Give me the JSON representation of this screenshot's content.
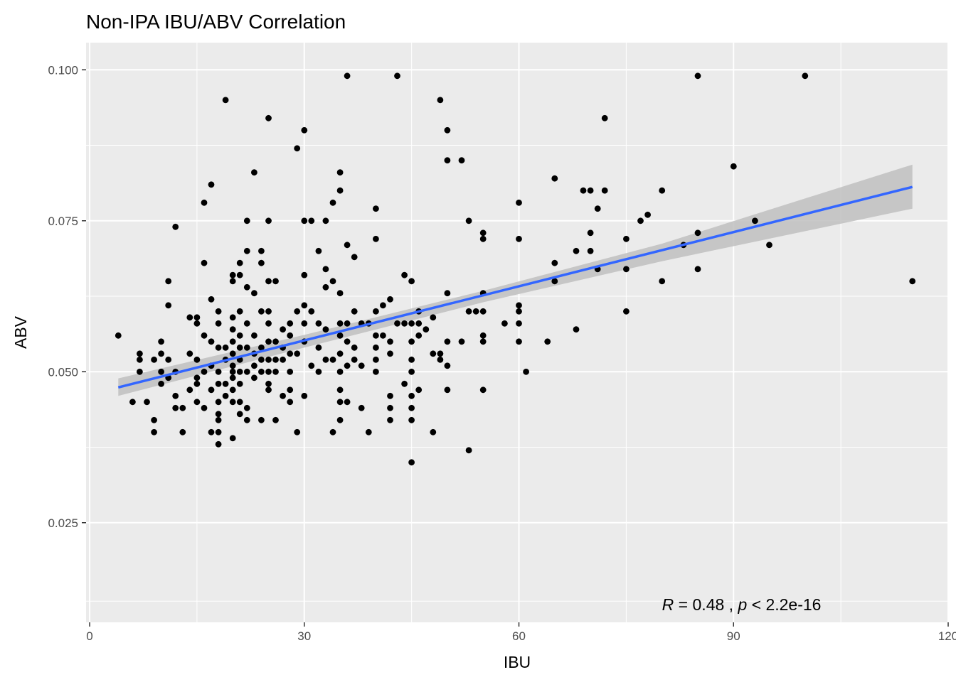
{
  "chart_data": {
    "type": "scatter",
    "title": "Non-IPA IBU/ABV Correlation",
    "xlabel": "IBU",
    "ylabel": "ABV",
    "xlim": [
      -0.5,
      120
    ],
    "ylim": [
      0.0085,
      0.1045
    ],
    "x_ticks": [
      0,
      30,
      60,
      90,
      120
    ],
    "x_tick_labels": [
      "0",
      "30",
      "60",
      "90",
      "120"
    ],
    "y_ticks": [
      0.025,
      0.05,
      0.075,
      0.1
    ],
    "y_tick_labels": [
      "0.025",
      "0.050",
      "0.075",
      "0.100"
    ],
    "grid": true,
    "colors": {
      "panel": "#ebebeb",
      "grid": "#ffffff",
      "points": "#000000",
      "trend_line": "#3366ff",
      "confidence_band": "#bfbfbf"
    },
    "annotation": {
      "r_symbol": "R",
      "r_text": " = 0.48 , ",
      "p_symbol": "p",
      "p_text": " < 2.2e-16",
      "x": 80,
      "y": 0.0105
    },
    "trend_line": {
      "x": [
        4,
        115
      ],
      "y": [
        0.0474,
        0.0806
      ]
    },
    "confidence_band": {
      "x": [
        4,
        30,
        55,
        80,
        115
      ],
      "lower": [
        0.046,
        0.054,
        0.0615,
        0.0683,
        0.077
      ],
      "upper": [
        0.0489,
        0.0561,
        0.0634,
        0.0712,
        0.0843
      ]
    },
    "series": [
      {
        "points": [
          [
            4,
            0.056
          ],
          [
            6,
            0.045
          ],
          [
            7,
            0.053
          ],
          [
            7,
            0.052
          ],
          [
            7,
            0.05
          ],
          [
            8,
            0.045
          ],
          [
            9,
            0.052
          ],
          [
            9,
            0.042
          ],
          [
            9,
            0.04
          ],
          [
            10,
            0.055
          ],
          [
            10,
            0.053
          ],
          [
            10,
            0.05
          ],
          [
            10,
            0.048
          ],
          [
            11,
            0.052
          ],
          [
            11,
            0.049
          ],
          [
            11,
            0.065
          ],
          [
            11,
            0.061
          ],
          [
            12,
            0.074
          ],
          [
            12,
            0.05
          ],
          [
            12,
            0.046
          ],
          [
            12,
            0.044
          ],
          [
            13,
            0.044
          ],
          [
            13,
            0.04
          ],
          [
            14,
            0.059
          ],
          [
            14,
            0.053
          ],
          [
            14,
            0.047
          ],
          [
            15,
            0.059
          ],
          [
            15,
            0.058
          ],
          [
            15,
            0.052
          ],
          [
            15,
            0.049
          ],
          [
            15,
            0.048
          ],
          [
            15,
            0.045
          ],
          [
            16,
            0.078
          ],
          [
            16,
            0.068
          ],
          [
            16,
            0.056
          ],
          [
            16,
            0.05
          ],
          [
            16,
            0.044
          ],
          [
            17,
            0.081
          ],
          [
            17,
            0.062
          ],
          [
            17,
            0.055
          ],
          [
            17,
            0.051
          ],
          [
            17,
            0.047
          ],
          [
            17,
            0.04
          ],
          [
            18,
            0.06
          ],
          [
            18,
            0.058
          ],
          [
            18,
            0.054
          ],
          [
            18,
            0.05
          ],
          [
            18,
            0.048
          ],
          [
            18,
            0.045
          ],
          [
            18,
            0.043
          ],
          [
            18,
            0.042
          ],
          [
            18,
            0.04
          ],
          [
            18,
            0.038
          ],
          [
            19,
            0.095
          ],
          [
            19,
            0.054
          ],
          [
            19,
            0.052
          ],
          [
            19,
            0.048
          ],
          [
            19,
            0.046
          ],
          [
            20,
            0.066
          ],
          [
            20,
            0.065
          ],
          [
            20,
            0.059
          ],
          [
            20,
            0.057
          ],
          [
            20,
            0.055
          ],
          [
            20,
            0.053
          ],
          [
            20,
            0.051
          ],
          [
            20,
            0.05
          ],
          [
            20,
            0.049
          ],
          [
            20,
            0.047
          ],
          [
            20,
            0.045
          ],
          [
            20,
            0.039
          ],
          [
            21,
            0.068
          ],
          [
            21,
            0.066
          ],
          [
            21,
            0.06
          ],
          [
            21,
            0.056
          ],
          [
            21,
            0.054
          ],
          [
            21,
            0.052
          ],
          [
            21,
            0.05
          ],
          [
            21,
            0.048
          ],
          [
            21,
            0.045
          ],
          [
            21,
            0.043
          ],
          [
            22,
            0.075
          ],
          [
            22,
            0.07
          ],
          [
            22,
            0.064
          ],
          [
            22,
            0.058
          ],
          [
            22,
            0.054
          ],
          [
            22,
            0.05
          ],
          [
            22,
            0.044
          ],
          [
            22,
            0.042
          ],
          [
            23,
            0.083
          ],
          [
            23,
            0.063
          ],
          [
            23,
            0.056
          ],
          [
            23,
            0.053
          ],
          [
            23,
            0.051
          ],
          [
            23,
            0.049
          ],
          [
            24,
            0.07
          ],
          [
            24,
            0.068
          ],
          [
            24,
            0.06
          ],
          [
            24,
            0.054
          ],
          [
            24,
            0.052
          ],
          [
            24,
            0.05
          ],
          [
            24,
            0.042
          ],
          [
            25,
            0.092
          ],
          [
            25,
            0.075
          ],
          [
            25,
            0.065
          ],
          [
            25,
            0.06
          ],
          [
            25,
            0.058
          ],
          [
            25,
            0.055
          ],
          [
            25,
            0.052
          ],
          [
            25,
            0.05
          ],
          [
            25,
            0.048
          ],
          [
            25,
            0.047
          ],
          [
            26,
            0.065
          ],
          [
            26,
            0.055
          ],
          [
            26,
            0.052
          ],
          [
            26,
            0.05
          ],
          [
            26,
            0.042
          ],
          [
            27,
            0.057
          ],
          [
            27,
            0.054
          ],
          [
            27,
            0.052
          ],
          [
            27,
            0.046
          ],
          [
            28,
            0.058
          ],
          [
            28,
            0.056
          ],
          [
            28,
            0.053
          ],
          [
            28,
            0.05
          ],
          [
            28,
            0.047
          ],
          [
            28,
            0.045
          ],
          [
            29,
            0.087
          ],
          [
            29,
            0.06
          ],
          [
            29,
            0.053
          ],
          [
            29,
            0.04
          ],
          [
            30,
            0.09
          ],
          [
            30,
            0.075
          ],
          [
            30,
            0.066
          ],
          [
            30,
            0.061
          ],
          [
            30,
            0.058
          ],
          [
            30,
            0.055
          ],
          [
            30,
            0.046
          ],
          [
            31,
            0.075
          ],
          [
            31,
            0.06
          ],
          [
            31,
            0.051
          ],
          [
            32,
            0.07
          ],
          [
            32,
            0.058
          ],
          [
            32,
            0.054
          ],
          [
            32,
            0.05
          ],
          [
            33,
            0.075
          ],
          [
            33,
            0.067
          ],
          [
            33,
            0.064
          ],
          [
            33,
            0.057
          ],
          [
            33,
            0.052
          ],
          [
            34,
            0.078
          ],
          [
            34,
            0.065
          ],
          [
            34,
            0.052
          ],
          [
            34,
            0.04
          ],
          [
            35,
            0.083
          ],
          [
            35,
            0.08
          ],
          [
            35,
            0.063
          ],
          [
            35,
            0.058
          ],
          [
            35,
            0.056
          ],
          [
            35,
            0.053
          ],
          [
            35,
            0.05
          ],
          [
            35,
            0.047
          ],
          [
            35,
            0.045
          ],
          [
            35,
            0.042
          ],
          [
            36,
            0.099
          ],
          [
            36,
            0.071
          ],
          [
            36,
            0.058
          ],
          [
            36,
            0.055
          ],
          [
            36,
            0.051
          ],
          [
            36,
            0.045
          ],
          [
            37,
            0.069
          ],
          [
            37,
            0.06
          ],
          [
            37,
            0.054
          ],
          [
            37,
            0.052
          ],
          [
            38,
            0.058
          ],
          [
            38,
            0.051
          ],
          [
            38,
            0.044
          ],
          [
            39,
            0.058
          ],
          [
            39,
            0.04
          ],
          [
            40,
            0.077
          ],
          [
            40,
            0.072
          ],
          [
            40,
            0.06
          ],
          [
            40,
            0.056
          ],
          [
            40,
            0.054
          ],
          [
            40,
            0.052
          ],
          [
            40,
            0.05
          ],
          [
            41,
            0.061
          ],
          [
            41,
            0.056
          ],
          [
            42,
            0.062
          ],
          [
            42,
            0.055
          ],
          [
            42,
            0.053
          ],
          [
            42,
            0.046
          ],
          [
            42,
            0.044
          ],
          [
            42,
            0.042
          ],
          [
            43,
            0.099
          ],
          [
            43,
            0.058
          ],
          [
            44,
            0.066
          ],
          [
            44,
            0.058
          ],
          [
            44,
            0.048
          ],
          [
            45,
            0.065
          ],
          [
            45,
            0.058
          ],
          [
            45,
            0.055
          ],
          [
            45,
            0.052
          ],
          [
            45,
            0.05
          ],
          [
            45,
            0.046
          ],
          [
            45,
            0.044
          ],
          [
            45,
            0.042
          ],
          [
            45,
            0.035
          ],
          [
            46,
            0.06
          ],
          [
            46,
            0.058
          ],
          [
            46,
            0.056
          ],
          [
            46,
            0.047
          ],
          [
            47,
            0.057
          ],
          [
            48,
            0.059
          ],
          [
            48,
            0.053
          ],
          [
            48,
            0.04
          ],
          [
            49,
            0.095
          ],
          [
            49,
            0.053
          ],
          [
            49,
            0.052
          ],
          [
            50,
            0.09
          ],
          [
            50,
            0.085
          ],
          [
            50,
            0.063
          ],
          [
            50,
            0.055
          ],
          [
            50,
            0.051
          ],
          [
            50,
            0.047
          ],
          [
            52,
            0.085
          ],
          [
            52,
            0.055
          ],
          [
            53,
            0.075
          ],
          [
            53,
            0.06
          ],
          [
            53,
            0.037
          ],
          [
            54,
            0.06
          ],
          [
            55,
            0.073
          ],
          [
            55,
            0.072
          ],
          [
            55,
            0.063
          ],
          [
            55,
            0.06
          ],
          [
            55,
            0.056
          ],
          [
            55,
            0.055
          ],
          [
            55,
            0.047
          ],
          [
            58,
            0.058
          ],
          [
            60,
            0.078
          ],
          [
            60,
            0.072
          ],
          [
            60,
            0.061
          ],
          [
            60,
            0.06
          ],
          [
            60,
            0.058
          ],
          [
            60,
            0.055
          ],
          [
            61,
            0.05
          ],
          [
            64,
            0.055
          ],
          [
            65,
            0.082
          ],
          [
            65,
            0.068
          ],
          [
            65,
            0.065
          ],
          [
            68,
            0.07
          ],
          [
            68,
            0.057
          ],
          [
            69,
            0.08
          ],
          [
            70,
            0.08
          ],
          [
            70,
            0.073
          ],
          [
            70,
            0.07
          ],
          [
            71,
            0.077
          ],
          [
            71,
            0.067
          ],
          [
            72,
            0.092
          ],
          [
            72,
            0.08
          ],
          [
            75,
            0.072
          ],
          [
            75,
            0.067
          ],
          [
            75,
            0.06
          ],
          [
            77,
            0.075
          ],
          [
            78,
            0.076
          ],
          [
            80,
            0.08
          ],
          [
            80,
            0.065
          ],
          [
            83,
            0.071
          ],
          [
            85,
            0.099
          ],
          [
            85,
            0.073
          ],
          [
            85,
            0.067
          ],
          [
            90,
            0.084
          ],
          [
            93,
            0.075
          ],
          [
            95,
            0.071
          ],
          [
            100,
            0.099
          ],
          [
            115,
            0.065
          ]
        ]
      }
    ]
  }
}
